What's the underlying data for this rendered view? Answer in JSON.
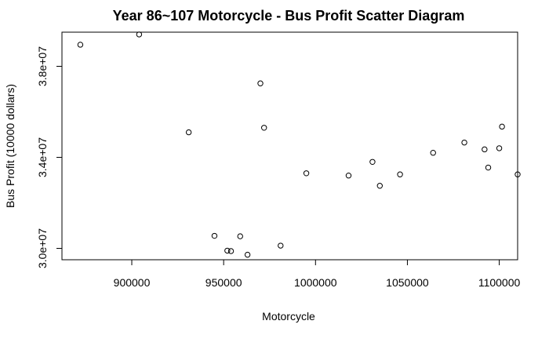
{
  "chart_data": {
    "type": "scatter",
    "title": "Year 86~107 Motorcycle  -  Bus Profit Scatter Diagram",
    "xlabel": "Motorcycle",
    "ylabel": "Bus Profit (10000 dollars)",
    "xlim": [
      862000,
      1110000
    ],
    "ylim": [
      29500000,
      39500000
    ],
    "xticks": [
      900000,
      950000,
      1000000,
      1050000,
      1100000
    ],
    "xtick_labels": [
      "900000",
      "950000",
      "1000000",
      "1050000",
      "1100000"
    ],
    "yticks": [
      30000000,
      34000000,
      38000000
    ],
    "ytick_labels": [
      "3.0e+07",
      "3.4e+07",
      "3.8e+07"
    ],
    "grid": false,
    "colors": {
      "point_stroke": "#000000",
      "frame": "#000000",
      "background": "#ffffff"
    },
    "points": [
      {
        "x": 872000,
        "y": 38950000
      },
      {
        "x": 904000,
        "y": 39400000
      },
      {
        "x": 931000,
        "y": 35100000
      },
      {
        "x": 945000,
        "y": 30550000
      },
      {
        "x": 952000,
        "y": 29900000
      },
      {
        "x": 954000,
        "y": 29880000
      },
      {
        "x": 959000,
        "y": 30530000
      },
      {
        "x": 963000,
        "y": 29720000
      },
      {
        "x": 970000,
        "y": 37250000
      },
      {
        "x": 972000,
        "y": 35300000
      },
      {
        "x": 981000,
        "y": 30120000
      },
      {
        "x": 995000,
        "y": 33300000
      },
      {
        "x": 1018000,
        "y": 33200000
      },
      {
        "x": 1031000,
        "y": 33800000
      },
      {
        "x": 1035000,
        "y": 32750000
      },
      {
        "x": 1046000,
        "y": 33250000
      },
      {
        "x": 1064000,
        "y": 34200000
      },
      {
        "x": 1081000,
        "y": 34650000
      },
      {
        "x": 1092000,
        "y": 34350000
      },
      {
        "x": 1094000,
        "y": 33550000
      },
      {
        "x": 1100000,
        "y": 34400000
      },
      {
        "x": 1101500,
        "y": 35350000
      },
      {
        "x": 1110000,
        "y": 33250000
      }
    ]
  }
}
